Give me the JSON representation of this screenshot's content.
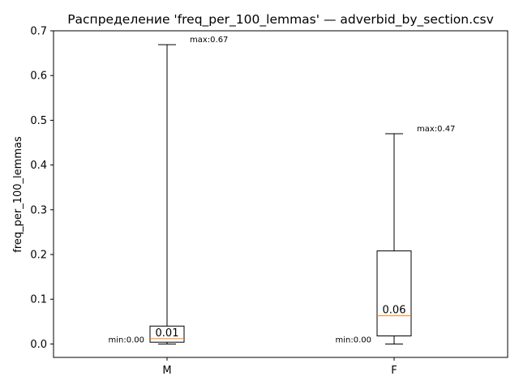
{
  "chart_data": {
    "type": "boxplot",
    "title": "Распределение 'freq_per_100_lemmas' — adverbid_by_section.csv",
    "xlabel": "",
    "ylabel": "freq_per_100_lemmas",
    "ylim": [
      -0.03,
      0.7
    ],
    "yticks": [
      0.0,
      0.1,
      0.2,
      0.3,
      0.4,
      0.5,
      0.6,
      0.7
    ],
    "ytick_labels": [
      "0.0",
      "0.1",
      "0.2",
      "0.3",
      "0.4",
      "0.5",
      "0.6",
      "0.7"
    ],
    "grid": false,
    "colors": {
      "box": "#000000",
      "median": "#ff7f0e"
    },
    "categories": [
      "M",
      "F"
    ],
    "boxes": [
      {
        "category": "M",
        "whisker_low": 0.0,
        "q1": 0.004,
        "median": 0.012,
        "q3": 0.04,
        "whisker_high": 0.669,
        "median_label": "0.01",
        "min_label": "min:0.00",
        "max_label": "max:0.67"
      },
      {
        "category": "F",
        "whisker_low": 0.0,
        "q1": 0.018,
        "median": 0.063,
        "q3": 0.208,
        "whisker_high": 0.47,
        "median_label": "0.06",
        "min_label": "min:0.00",
        "max_label": "max:0.47"
      }
    ]
  }
}
